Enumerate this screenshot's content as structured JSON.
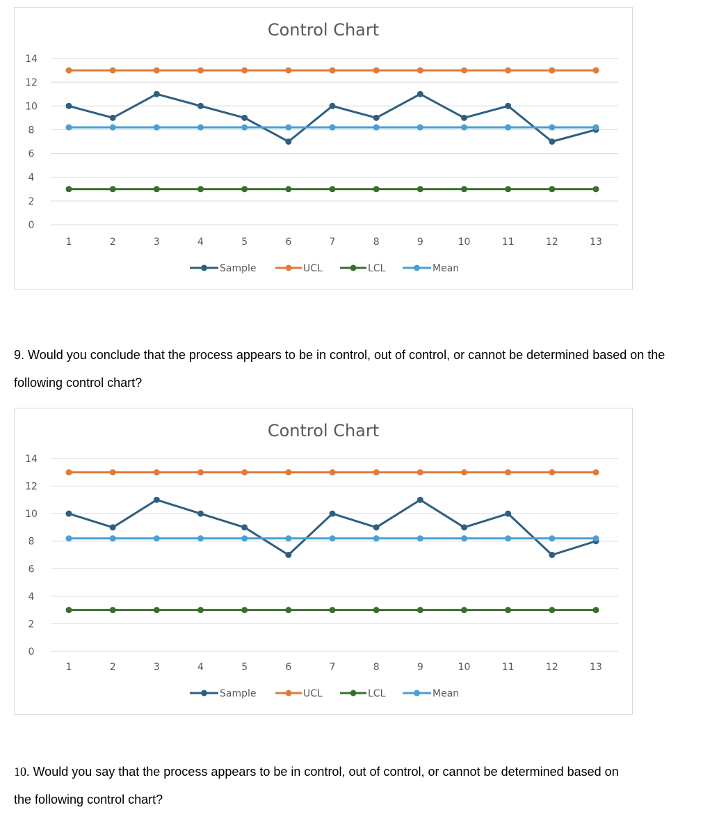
{
  "chart_data": [
    {
      "type": "line",
      "title": "Control Chart",
      "x": [
        1,
        2,
        3,
        4,
        5,
        6,
        7,
        8,
        9,
        10,
        11,
        12,
        13
      ],
      "ylim": [
        0,
        14
      ],
      "yticks": [
        0,
        2,
        4,
        6,
        8,
        10,
        12,
        14
      ],
      "grid": true,
      "legend": "bottom",
      "series": [
        {
          "name": "Sample",
          "color": "#2e5f7f",
          "values": [
            10,
            9,
            11,
            10,
            9,
            7,
            10,
            9,
            11,
            9,
            10,
            7,
            8
          ]
        },
        {
          "name": "UCL",
          "color": "#e07b3c",
          "values": [
            13,
            13,
            13,
            13,
            13,
            13,
            13,
            13,
            13,
            13,
            13,
            13,
            13
          ]
        },
        {
          "name": "LCL",
          "color": "#3a6e2f",
          "values": [
            3,
            3,
            3,
            3,
            3,
            3,
            3,
            3,
            3,
            3,
            3,
            3,
            3
          ]
        },
        {
          "name": "Mean",
          "color": "#4a9fd4",
          "values": [
            8.2,
            8.2,
            8.2,
            8.2,
            8.2,
            8.2,
            8.2,
            8.2,
            8.2,
            8.2,
            8.2,
            8.2,
            8.2
          ]
        }
      ]
    },
    {
      "type": "line",
      "title": "Control Chart",
      "x": [
        1,
        2,
        3,
        4,
        5,
        6,
        7,
        8,
        9,
        10,
        11,
        12,
        13
      ],
      "ylim": [
        0,
        14
      ],
      "yticks": [
        0,
        2,
        4,
        6,
        8,
        10,
        12,
        14
      ],
      "grid": true,
      "legend": "bottom",
      "series": [
        {
          "name": "Sample",
          "color": "#2e5f7f",
          "values": [
            10,
            9,
            11,
            10,
            9,
            7,
            10,
            9,
            11,
            9,
            10,
            7,
            8
          ]
        },
        {
          "name": "UCL",
          "color": "#e07b3c",
          "values": [
            13,
            13,
            13,
            13,
            13,
            13,
            13,
            13,
            13,
            13,
            13,
            13,
            13
          ]
        },
        {
          "name": "LCL",
          "color": "#3a6e2f",
          "values": [
            3,
            3,
            3,
            3,
            3,
            3,
            3,
            3,
            3,
            3,
            3,
            3,
            3
          ]
        },
        {
          "name": "Mean",
          "color": "#4a9fd4",
          "values": [
            8.2,
            8.2,
            8.2,
            8.2,
            8.2,
            8.2,
            8.2,
            8.2,
            8.2,
            8.2,
            8.2,
            8.2,
            8.2
          ]
        }
      ]
    }
  ],
  "questions": [
    {
      "number": "9.",
      "text": "Would you conclude that the process appears to be in control, out of control, or cannot be determined based on the following control chart?"
    },
    {
      "number": "10.",
      "text": "Would you say that the process appears to be in control, out of control, or cannot be determined based on the following control chart?"
    }
  ]
}
